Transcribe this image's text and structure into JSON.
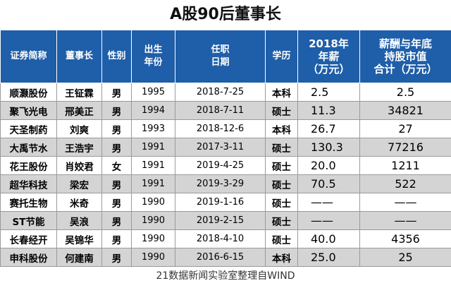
{
  "title": "A股90后董事长",
  "headers": {
    "company": "证券简称",
    "chairman": "董事长",
    "gender": "性别",
    "birth_l1": "出生",
    "birth_l2": "年份",
    "start_l1": "任职",
    "start_l2": "日期",
    "education": "学历",
    "salary_l1": "2018年",
    "salary_l2": "年薪",
    "salary_l3": "（万元）",
    "total_l1": "薪酬与年底",
    "total_l2": "持股市值",
    "total_l3": "合计（万元）"
  },
  "rows": [
    {
      "company": "顺灏股份",
      "chairman": "王钲霖",
      "gender": "男",
      "birth": "1995",
      "start": "2018-7-25",
      "education": "本科",
      "salary": "2.5",
      "total": "2.5"
    },
    {
      "company": "聚飞光电",
      "chairman": "邢美正",
      "gender": "男",
      "birth": "1994",
      "start": "2018-7-11",
      "education": "硕士",
      "salary": "11.3",
      "total": "34821"
    },
    {
      "company": "天圣制药",
      "chairman": "刘爽",
      "gender": "男",
      "birth": "1993",
      "start": "2018-12-6",
      "education": "本科",
      "salary": "26.7",
      "total": "27"
    },
    {
      "company": "大禹节水",
      "chairman": "王浩宇",
      "gender": "男",
      "birth": "1991",
      "start": "2017-3-11",
      "education": "硕士",
      "salary": "130.3",
      "total": "77216"
    },
    {
      "company": "花王股份",
      "chairman": "肖姣君",
      "gender": "女",
      "birth": "1991",
      "start": "2019-4-25",
      "education": "硕士",
      "salary": "20.0",
      "total": "1211"
    },
    {
      "company": "超华科技",
      "chairman": "梁宏",
      "gender": "男",
      "birth": "1991",
      "start": "2019-3-29",
      "education": "硕士",
      "salary": "70.5",
      "total": "522"
    },
    {
      "company": "赛托生物",
      "chairman": "米奇",
      "gender": "男",
      "birth": "1990",
      "start": "2019-1-16",
      "education": "硕士",
      "salary": "——",
      "total": "——"
    },
    {
      "company": "ST节能",
      "chairman": "吴浪",
      "gender": "男",
      "birth": "1990",
      "start": "2019-2-15",
      "education": "硕士",
      "salary": "——",
      "total": "——"
    },
    {
      "company": "长春经开",
      "chairman": "吴锦华",
      "gender": "男",
      "birth": "1990",
      "start": "2018-4-10",
      "education": "硕士",
      "salary": "40.0",
      "total": "4356"
    },
    {
      "company": "申科股份",
      "chairman": "何建南",
      "gender": "男",
      "birth": "1990",
      "start": "2016-6-15",
      "education": "本科",
      "salary": "25.0",
      "total": "25"
    }
  ],
  "footer": "21数据新闻实验室整理自WIND",
  "colors": {
    "header_bg": "#1f5ea8",
    "header_text": "#ffffff",
    "stripe": "#d4d4d4"
  }
}
